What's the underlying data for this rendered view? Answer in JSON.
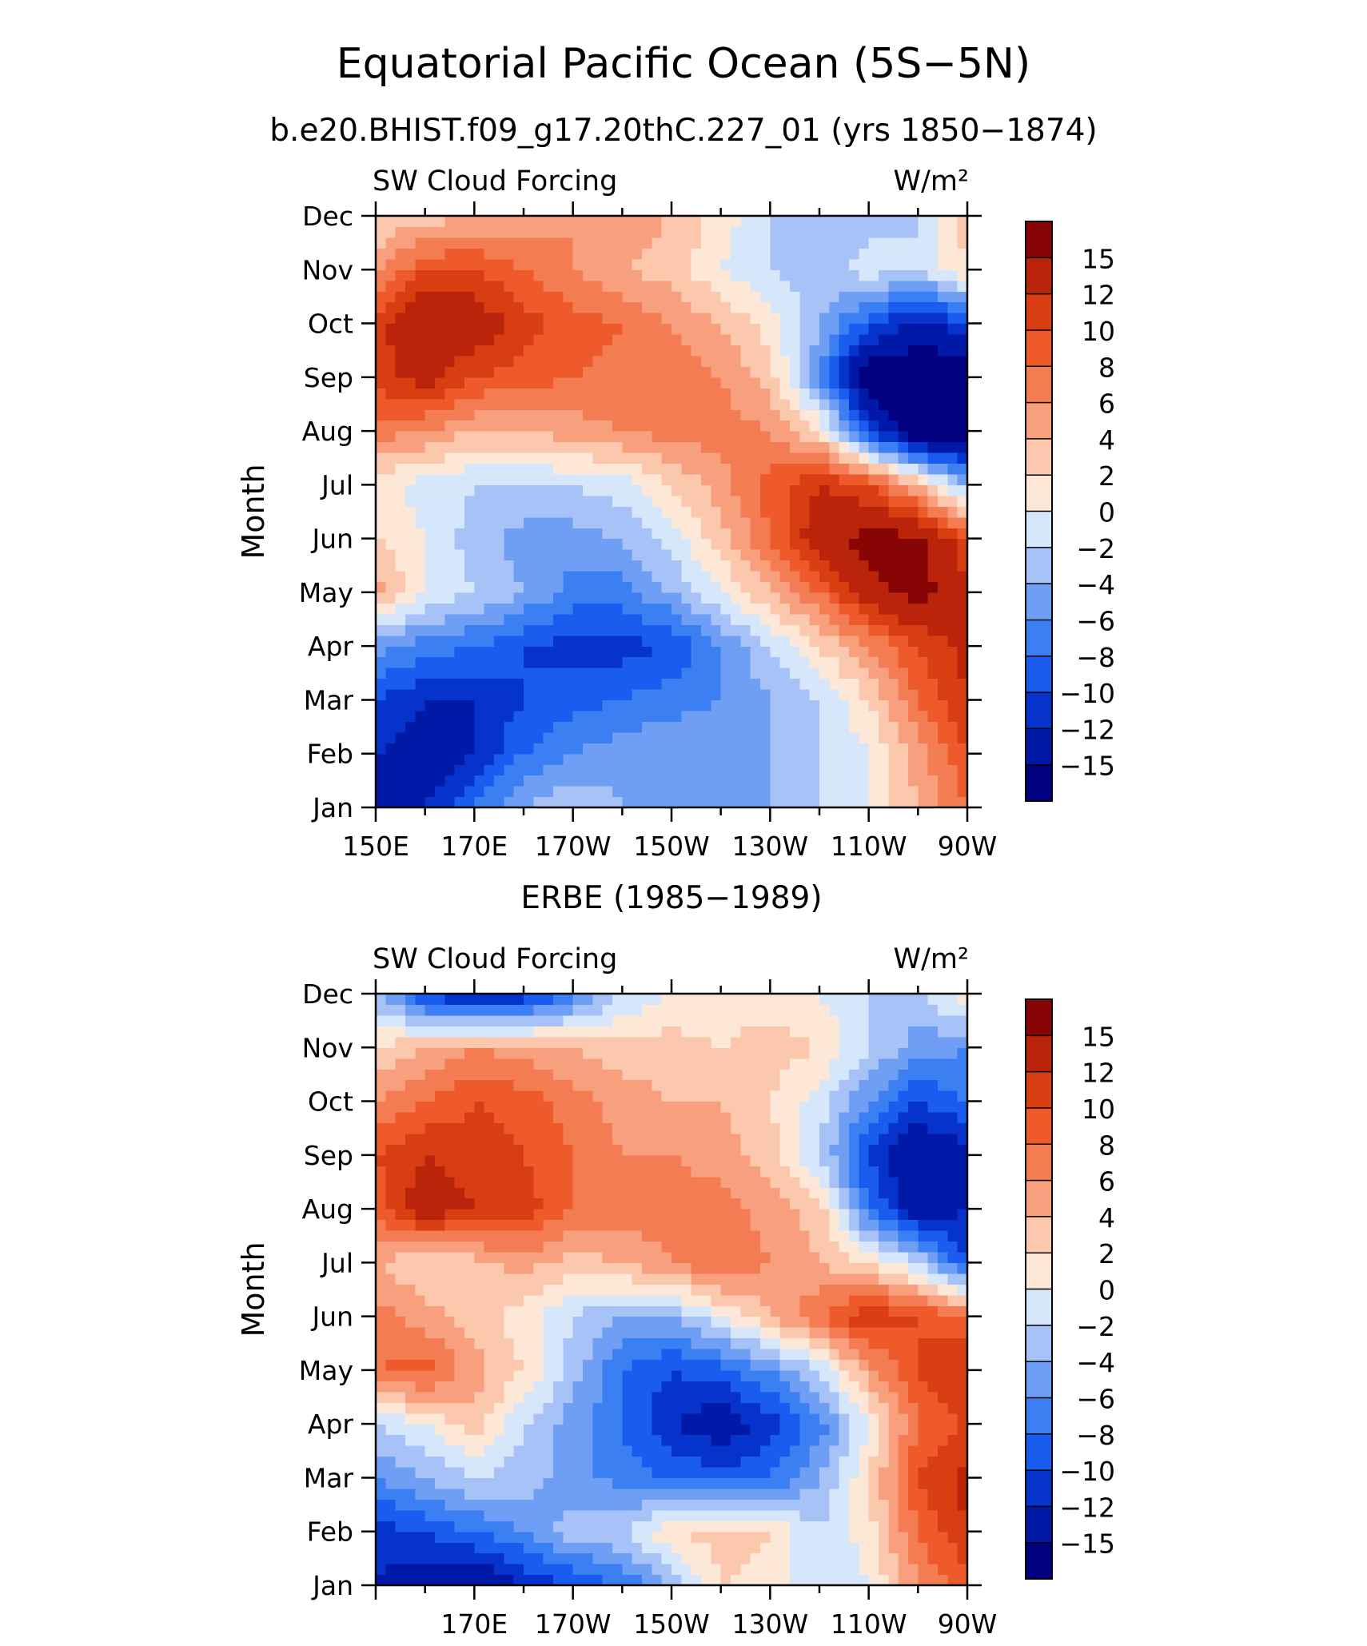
{
  "figure": {
    "title": "Equatorial Pacific Ocean (5S−5N)",
    "subtitle": "b.e20.BHIST.f09_g17.20thC.227_01 (yrs 1850−1874)"
  },
  "colorbar": {
    "colors": [
      "#000080",
      "#0019a6",
      "#0533cc",
      "#1a5cf0",
      "#3b7ff2",
      "#6f9ff5",
      "#a6c2f7",
      "#d6e6fb",
      "#fde8d8",
      "#fbc8ad",
      "#f8a07e",
      "#f47c53",
      "#ef5a2b",
      "#d93e12",
      "#b9240b",
      "#880505"
    ],
    "bounds": [
      -18,
      -15,
      -12,
      -10,
      -8,
      -6,
      -4,
      -2,
      0,
      2,
      4,
      6,
      8,
      10,
      12,
      15,
      18
    ],
    "labels": [
      "15",
      "12",
      "10",
      "8",
      "6",
      "4",
      "2",
      "0",
      "−2",
      "−4",
      "−6",
      "−8",
      "−10",
      "−12",
      "−15"
    ]
  },
  "chart_data": [
    {
      "type": "heatmap",
      "title": "",
      "left_label": "SW Cloud Forcing",
      "right_label": "W/m²",
      "ylabel": "Month",
      "months": [
        "Jan",
        "Feb",
        "Mar",
        "Apr",
        "May",
        "Jun",
        "Jul",
        "Aug",
        "Sep",
        "Oct",
        "Nov",
        "Dec"
      ],
      "x_ticks": [
        "150E",
        "170E",
        "170W",
        "150W",
        "130W",
        "110W",
        "90W"
      ],
      "x_tick_lon": [
        150,
        170,
        190,
        210,
        230,
        250,
        270
      ],
      "xlim": [
        150,
        270
      ],
      "lon": [
        150,
        160,
        170,
        180,
        190,
        200,
        210,
        220,
        230,
        240,
        250,
        260,
        270
      ],
      "z": [
        [
          -14,
          -12,
          -8,
          -4,
          -2,
          -4,
          -5,
          -5,
          -4,
          -2,
          0,
          4,
          8
        ],
        [
          -12,
          -14,
          -12,
          -8,
          -6,
          -5,
          -4,
          -5,
          -4,
          -2,
          0,
          5,
          10
        ],
        [
          -10,
          -12,
          -12,
          -10,
          -9,
          -8,
          -7,
          -6,
          -4,
          -2,
          2,
          8,
          12
        ],
        [
          -5,
          -7,
          -8,
          -10,
          -11,
          -11,
          -10,
          -6,
          -2,
          2,
          6,
          10,
          13
        ],
        [
          5,
          0,
          -2,
          -4,
          -7,
          -7,
          -4,
          0,
          4,
          8,
          14,
          16,
          13
        ],
        [
          2,
          0,
          -3,
          -5,
          -5,
          -4,
          -1,
          3,
          8,
          14,
          16,
          16,
          10
        ],
        [
          1,
          -1,
          -2,
          -2,
          -2,
          -1,
          2,
          5,
          9,
          12,
          10,
          4,
          -4
        ],
        [
          7,
          6,
          4,
          4,
          5,
          6,
          7,
          7,
          6,
          2,
          -10,
          -18,
          -18
        ],
        [
          11,
          13,
          10,
          9,
          8,
          7,
          7,
          6,
          3,
          -6,
          -18,
          -18,
          -18
        ],
        [
          11,
          15,
          14,
          11,
          9,
          8,
          6,
          4,
          1,
          -4,
          -9,
          -13,
          -10
        ],
        [
          5,
          10,
          10,
          8,
          6,
          4,
          3,
          0,
          -2,
          -3,
          -1,
          -2,
          2
        ],
        [
          2,
          3,
          4,
          5,
          6,
          5,
          4,
          1,
          -2,
          -3,
          -3,
          -2,
          3
        ]
      ]
    },
    {
      "type": "heatmap",
      "title": "ERBE (1985−1989)",
      "left_label": "SW Cloud Forcing",
      "right_label": "W/m²",
      "ylabel": "Month",
      "months": [
        "Jan",
        "Feb",
        "Mar",
        "Apr",
        "May",
        "Jun",
        "Jul",
        "Aug",
        "Sep",
        "Oct",
        "Nov",
        "Dec"
      ],
      "x_ticks": [
        "170E",
        "170W",
        "150W",
        "130W",
        "110W",
        "90W"
      ],
      "x_tick_lon": [
        170,
        190,
        210,
        230,
        250,
        270
      ],
      "xlim": [
        150,
        270
      ],
      "lon": [
        150,
        160,
        170,
        180,
        190,
        200,
        210,
        220,
        230,
        240,
        250,
        260,
        270
      ],
      "z": [
        [
          -12,
          -14,
          -15,
          -12,
          -10,
          -8,
          -4,
          2,
          1,
          -2,
          0,
          6,
          9
        ],
        [
          -11,
          -10,
          -8,
          -6,
          -3,
          -2,
          2,
          3,
          2,
          -2,
          1,
          8,
          12
        ],
        [
          -6,
          -4,
          -2,
          -3,
          -5,
          -7,
          -8,
          -9,
          -8,
          -4,
          2,
          10,
          13
        ],
        [
          -2,
          0,
          3,
          -2,
          -5,
          -8,
          -12,
          -14,
          -11,
          -7,
          0,
          8,
          10
        ],
        [
          8,
          9,
          5,
          2,
          -3,
          -8,
          -10,
          -9,
          -6,
          -2,
          5,
          10,
          12
        ],
        [
          7,
          5,
          3,
          1,
          -2,
          -4,
          -4,
          0,
          4,
          8,
          12,
          10,
          8
        ],
        [
          4,
          2,
          3,
          5,
          3,
          4,
          6,
          8,
          6,
          4,
          2,
          -2,
          -10
        ],
        [
          9,
          14,
          12,
          11,
          8,
          7,
          7,
          7,
          5,
          3,
          -8,
          -14,
          -12
        ],
        [
          10,
          12,
          11,
          10,
          8,
          6,
          6,
          5,
          3,
          -2,
          -10,
          -15,
          -13
        ],
        [
          6,
          8,
          10,
          9,
          7,
          5,
          4,
          4,
          2,
          -1,
          -6,
          -10,
          -8
        ],
        [
          2,
          4,
          6,
          5,
          4,
          3,
          3,
          2,
          3,
          2,
          -2,
          -5,
          -6
        ],
        [
          -4,
          -10,
          -14,
          -12,
          -7,
          -2,
          0,
          1,
          1,
          0,
          -2,
          -3,
          2
        ]
      ]
    }
  ]
}
